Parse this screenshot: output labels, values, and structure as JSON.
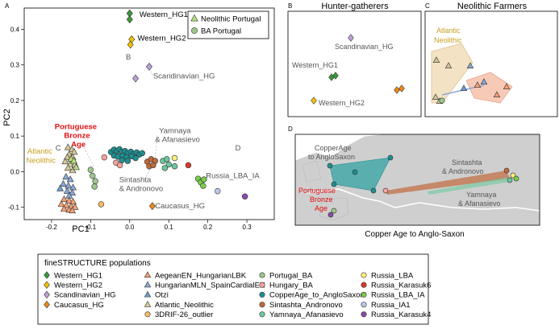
{
  "panel_letters": {
    "a": "A",
    "b": "B",
    "c": "C",
    "d": "D"
  },
  "panel_b": {
    "title": "Hunter-gatherers",
    "labels": [
      "Scandinavian_HG",
      "Western_HG1",
      "Western_HG2"
    ]
  },
  "panel_c": {
    "title": "Neolithic Farmers",
    "labels": [
      "Atlantic",
      "Neolithic"
    ]
  },
  "panel_d": {
    "caption": "Copper Age to Anglo-Saxon",
    "labels": {
      "copper1": "CopperAge",
      "copper2": "to AngloSaxon",
      "sint1": "Sintashta",
      "sint2": "& Andronovo",
      "yam1": "Yamnaya",
      "yam2": "& Afanasievo",
      "port1": "Portuguese",
      "port2": "Bronze",
      "port3": "Age"
    }
  },
  "legend": {
    "title": "fineSTRUCTURE populations",
    "items": [
      {
        "label": "Western_HG1",
        "color": "#3a9a3a",
        "shape": "diamond"
      },
      {
        "label": "Western_HG2",
        "color": "#f2c200",
        "shape": "diamond"
      },
      {
        "label": "Scandinavian_HG",
        "color": "#b9a2d8",
        "shape": "diamond"
      },
      {
        "label": "Caucasus_HG",
        "color": "#e88a1a",
        "shape": "diamond"
      },
      {
        "label": "AegeanEN_HungarianLBK",
        "color": "#f5a073",
        "shape": "triangle"
      },
      {
        "label": "HungarianMLN_SpainCardialEN",
        "color": "#8aa8d8",
        "shape": "triangle"
      },
      {
        "label": "Otzi",
        "color": "#6a9fd0",
        "shape": "triangle"
      },
      {
        "label": "Atlantic_Neolithic",
        "color": "#d4c89a",
        "shape": "triangle"
      },
      {
        "label": "3DRIF-26_outlier",
        "color": "#f4bb6a",
        "shape": "circle"
      },
      {
        "label": "Portugal_BA",
        "color": "#9cc88a",
        "shape": "circle"
      },
      {
        "label": "Hungary_BA",
        "color": "#f4a49c",
        "shape": "circle"
      },
      {
        "label": "CopperAge_to_AngloSaxon",
        "color": "#1f8f8f",
        "shape": "circle"
      },
      {
        "label": "Sintashta_Andronovo",
        "color": "#c06a3c",
        "shape": "circle"
      },
      {
        "label": "Yamnaya_Afanasievo",
        "color": "#6cc89c",
        "shape": "circle"
      },
      {
        "label": "Russia_LBA",
        "color": "#f8f07a",
        "shape": "circle"
      },
      {
        "label": "Russia_Karasuk6",
        "color": "#d8382c",
        "shape": "circle"
      },
      {
        "label": "Russia_LBA_IA",
        "color": "#7acc4a",
        "shape": "circle"
      },
      {
        "label": "Russia_IA1",
        "color": "#b8c8e8",
        "shape": "circle"
      },
      {
        "label": "Russia_Karasuk4",
        "color": "#8a4aa8",
        "shape": "circle"
      }
    ]
  },
  "chart_data": {
    "type": "scatter",
    "title": "",
    "xlabel": "PC1",
    "ylabel": "PC2",
    "xlim": [
      -0.27,
      0.37
    ],
    "ylim": [
      -0.135,
      0.46
    ],
    "xticks": [
      -0.2,
      -0.1,
      0.0,
      0.1,
      0.2,
      0.3
    ],
    "xtick_labels": [
      "-0.2",
      "-0.1",
      "0.0",
      "0.1",
      "0.2",
      "0.3"
    ],
    "yticks": [
      -0.1,
      0.0,
      0.1,
      0.2,
      0.3,
      0.4
    ],
    "ytick_labels": [
      "-0.1",
      "0.0",
      "0.1",
      "0.2",
      "0.3",
      "0.4"
    ],
    "inset_legend": [
      {
        "label": "Neolithic Portugal",
        "shape": "triangle",
        "color": "#b8e07a"
      },
      {
        "label": "BA Portugal",
        "shape": "circle",
        "color": "#9cc88a"
      }
    ],
    "annotations": [
      {
        "text": "Western_HG1",
        "x": 0.025,
        "y": 0.435,
        "color": "#000000"
      },
      {
        "text": "Western_HG2",
        "x": 0.02,
        "y": 0.368,
        "color": "#000000"
      },
      {
        "text": "B",
        "x": -0.01,
        "y": 0.315,
        "color": "#555555"
      },
      {
        "text": "Scandinavian_HG",
        "x": 0.06,
        "y": 0.262,
        "color": "#555555"
      },
      {
        "text": "Portuguese",
        "x": -0.192,
        "y": 0.12,
        "color": "#e01010"
      },
      {
        "text": "Bronze",
        "x": -0.168,
        "y": 0.095,
        "color": "#e01010"
      },
      {
        "text": "Age",
        "x": -0.15,
        "y": 0.07,
        "color": "#e01010"
      },
      {
        "text": "C",
        "x": -0.19,
        "y": 0.06,
        "color": "#555555"
      },
      {
        "text": "Atlantic",
        "x": -0.262,
        "y": 0.05,
        "color": "#c8a020"
      },
      {
        "text": "Neolithic",
        "x": -0.265,
        "y": 0.025,
        "color": "#c8a020"
      },
      {
        "text": "Yamnaya",
        "x": 0.075,
        "y": 0.108,
        "color": "#555555"
      },
      {
        "text": "& Afanasievo",
        "x": 0.065,
        "y": 0.083,
        "color": "#555555"
      },
      {
        "text": "D",
        "x": 0.27,
        "y": 0.06,
        "color": "#555555"
      },
      {
        "text": "Sintashta",
        "x": -0.027,
        "y": -0.03,
        "color": "#555555"
      },
      {
        "text": "& Andronovo",
        "x": -0.027,
        "y": -0.055,
        "color": "#555555"
      },
      {
        "text": "Russia_LBA_IA",
        "x": 0.195,
        "y": -0.018,
        "color": "#555555"
      },
      {
        "text": "Caucasus_HG",
        "x": 0.065,
        "y": -0.103,
        "color": "#555555"
      }
    ],
    "series": [
      {
        "name": "Western_HG1",
        "shape": "diamond",
        "color": "#3a9a3a",
        "points": [
          [
            0.0,
            0.445
          ],
          [
            0.0,
            0.428
          ]
        ]
      },
      {
        "name": "Western_HG2",
        "shape": "diamond",
        "color": "#f2c200",
        "points": [
          [
            0.005,
            0.372
          ],
          [
            0.002,
            0.357
          ]
        ]
      },
      {
        "name": "Scandinavian_HG",
        "shape": "diamond",
        "color": "#b9a2d8",
        "points": [
          [
            0.05,
            0.295
          ],
          [
            0.015,
            0.262
          ]
        ]
      },
      {
        "name": "Caucasus_HG",
        "shape": "diamond",
        "color": "#e88a1a",
        "points": [
          [
            0.058,
            -0.097
          ]
        ]
      },
      {
        "name": "Atlantic_Neolithic",
        "shape": "triangle",
        "color": "#d4c89a",
        "points": [
          [
            -0.158,
            0.068
          ],
          [
            -0.148,
            0.062
          ],
          [
            -0.142,
            0.055
          ],
          [
            -0.155,
            0.048
          ],
          [
            -0.16,
            0.04
          ],
          [
            -0.146,
            0.04
          ],
          [
            -0.165,
            0.028
          ],
          [
            -0.152,
            0.02
          ],
          [
            -0.14,
            0.02
          ],
          [
            -0.158,
            0.01
          ],
          [
            -0.146,
            0.003
          ]
        ]
      },
      {
        "name": "Neolithic Portugal",
        "shape": "triangle",
        "color": "#b8e07a",
        "points": [
          [
            -0.15,
            0.035
          ],
          [
            -0.143,
            0.03
          ],
          [
            -0.137,
            0.012
          ]
        ]
      },
      {
        "name": "HungarianMLN_SpainCardialEN",
        "shape": "triangle",
        "color": "#8aa8d8",
        "points": [
          [
            -0.163,
            -0.015
          ],
          [
            -0.152,
            -0.022
          ],
          [
            -0.17,
            -0.035
          ],
          [
            -0.157,
            -0.04
          ],
          [
            -0.145,
            -0.045
          ],
          [
            -0.16,
            -0.055
          ],
          [
            -0.147,
            -0.06
          ],
          [
            -0.155,
            -0.068
          ]
        ]
      },
      {
        "name": "Otzi",
        "shape": "triangle",
        "color": "#6a9fd0",
        "points": [
          [
            -0.178,
            -0.048
          ]
        ]
      },
      {
        "name": "AegeanEN_HungarianLBK",
        "shape": "triangle",
        "color": "#f5a073",
        "points": [
          [
            -0.168,
            -0.078
          ],
          [
            -0.155,
            -0.082
          ],
          [
            -0.145,
            -0.085
          ],
          [
            -0.175,
            -0.092
          ],
          [
            -0.162,
            -0.095
          ],
          [
            -0.15,
            -0.098
          ],
          [
            -0.14,
            -0.1
          ],
          [
            -0.168,
            -0.105
          ],
          [
            -0.155,
            -0.108
          ],
          [
            -0.147,
            -0.11
          ]
        ]
      },
      {
        "name": "3DRIF-26_outlier",
        "shape": "circle",
        "color": "#f4bb6a",
        "points": [
          [
            -0.073,
            -0.092
          ]
        ]
      },
      {
        "name": "BA Portugal",
        "shape": "circle",
        "color": "#9cc88a",
        "points": [
          [
            -0.1,
            0.005
          ],
          [
            -0.095,
            -0.012
          ],
          [
            -0.088,
            -0.027
          ],
          [
            -0.09,
            -0.042
          ]
        ]
      },
      {
        "name": "Hungary_BA",
        "shape": "circle",
        "color": "#f4a49c",
        "points": [
          [
            -0.065,
            0.04
          ],
          [
            -0.035,
            0.025
          ],
          [
            -0.025,
            0.018
          ]
        ]
      },
      {
        "name": "CopperAge_to_AngloSaxon",
        "shape": "circle",
        "color": "#1f8f8f",
        "points": [
          [
            -0.048,
            0.055
          ],
          [
            -0.04,
            0.062
          ],
          [
            -0.033,
            0.058
          ],
          [
            -0.026,
            0.063
          ],
          [
            -0.02,
            0.055
          ],
          [
            -0.012,
            0.058
          ],
          [
            -0.005,
            0.052
          ],
          [
            0.003,
            0.056
          ],
          [
            0.01,
            0.05
          ],
          [
            0.018,
            0.054
          ],
          [
            0.025,
            0.048
          ],
          [
            0.032,
            0.052
          ],
          [
            -0.04,
            0.045
          ],
          [
            -0.03,
            0.042
          ],
          [
            -0.018,
            0.045
          ],
          [
            -0.008,
            0.04
          ],
          [
            0.005,
            0.043
          ],
          [
            0.015,
            0.038
          ],
          [
            -0.02,
            0.032
          ],
          [
            -0.005,
            0.03
          ]
        ]
      },
      {
        "name": "Sintashta_Andronovo",
        "shape": "circle",
        "color": "#c06a3c",
        "points": [
          [
            0.045,
            0.028
          ],
          [
            0.055,
            0.035
          ],
          [
            0.065,
            0.03
          ],
          [
            0.05,
            0.015
          ],
          [
            0.06,
            0.018
          ]
        ]
      },
      {
        "name": "Yamnaya_Afanasievo",
        "shape": "circle",
        "color": "#6cc89c",
        "points": [
          [
            0.085,
            0.03
          ],
          [
            0.095,
            0.035
          ],
          [
            0.1,
            0.02
          ],
          [
            0.115,
            0.015
          ],
          [
            0.09,
            0.01
          ]
        ]
      },
      {
        "name": "Russia_LBA",
        "shape": "circle",
        "color": "#f8f07a",
        "points": [
          [
            0.115,
            0.038
          ]
        ]
      },
      {
        "name": "Russia_Karasuk6",
        "shape": "circle",
        "color": "#d8382c",
        "points": [
          [
            0.15,
            0.018
          ]
        ]
      },
      {
        "name": "Russia_LBA_IA",
        "shape": "circle",
        "color": "#7acc4a",
        "points": [
          [
            0.175,
            -0.02
          ],
          [
            0.182,
            -0.03
          ],
          [
            0.19,
            -0.022
          ],
          [
            0.188,
            -0.04
          ]
        ]
      },
      {
        "name": "Russia_IA1",
        "shape": "circle",
        "color": "#b8c8e8",
        "points": [
          [
            0.225,
            -0.055
          ]
        ]
      },
      {
        "name": "Russia_Karasuk4",
        "shape": "circle",
        "color": "#8a4aa8",
        "points": [
          [
            0.295,
            -0.07
          ]
        ]
      }
    ]
  }
}
